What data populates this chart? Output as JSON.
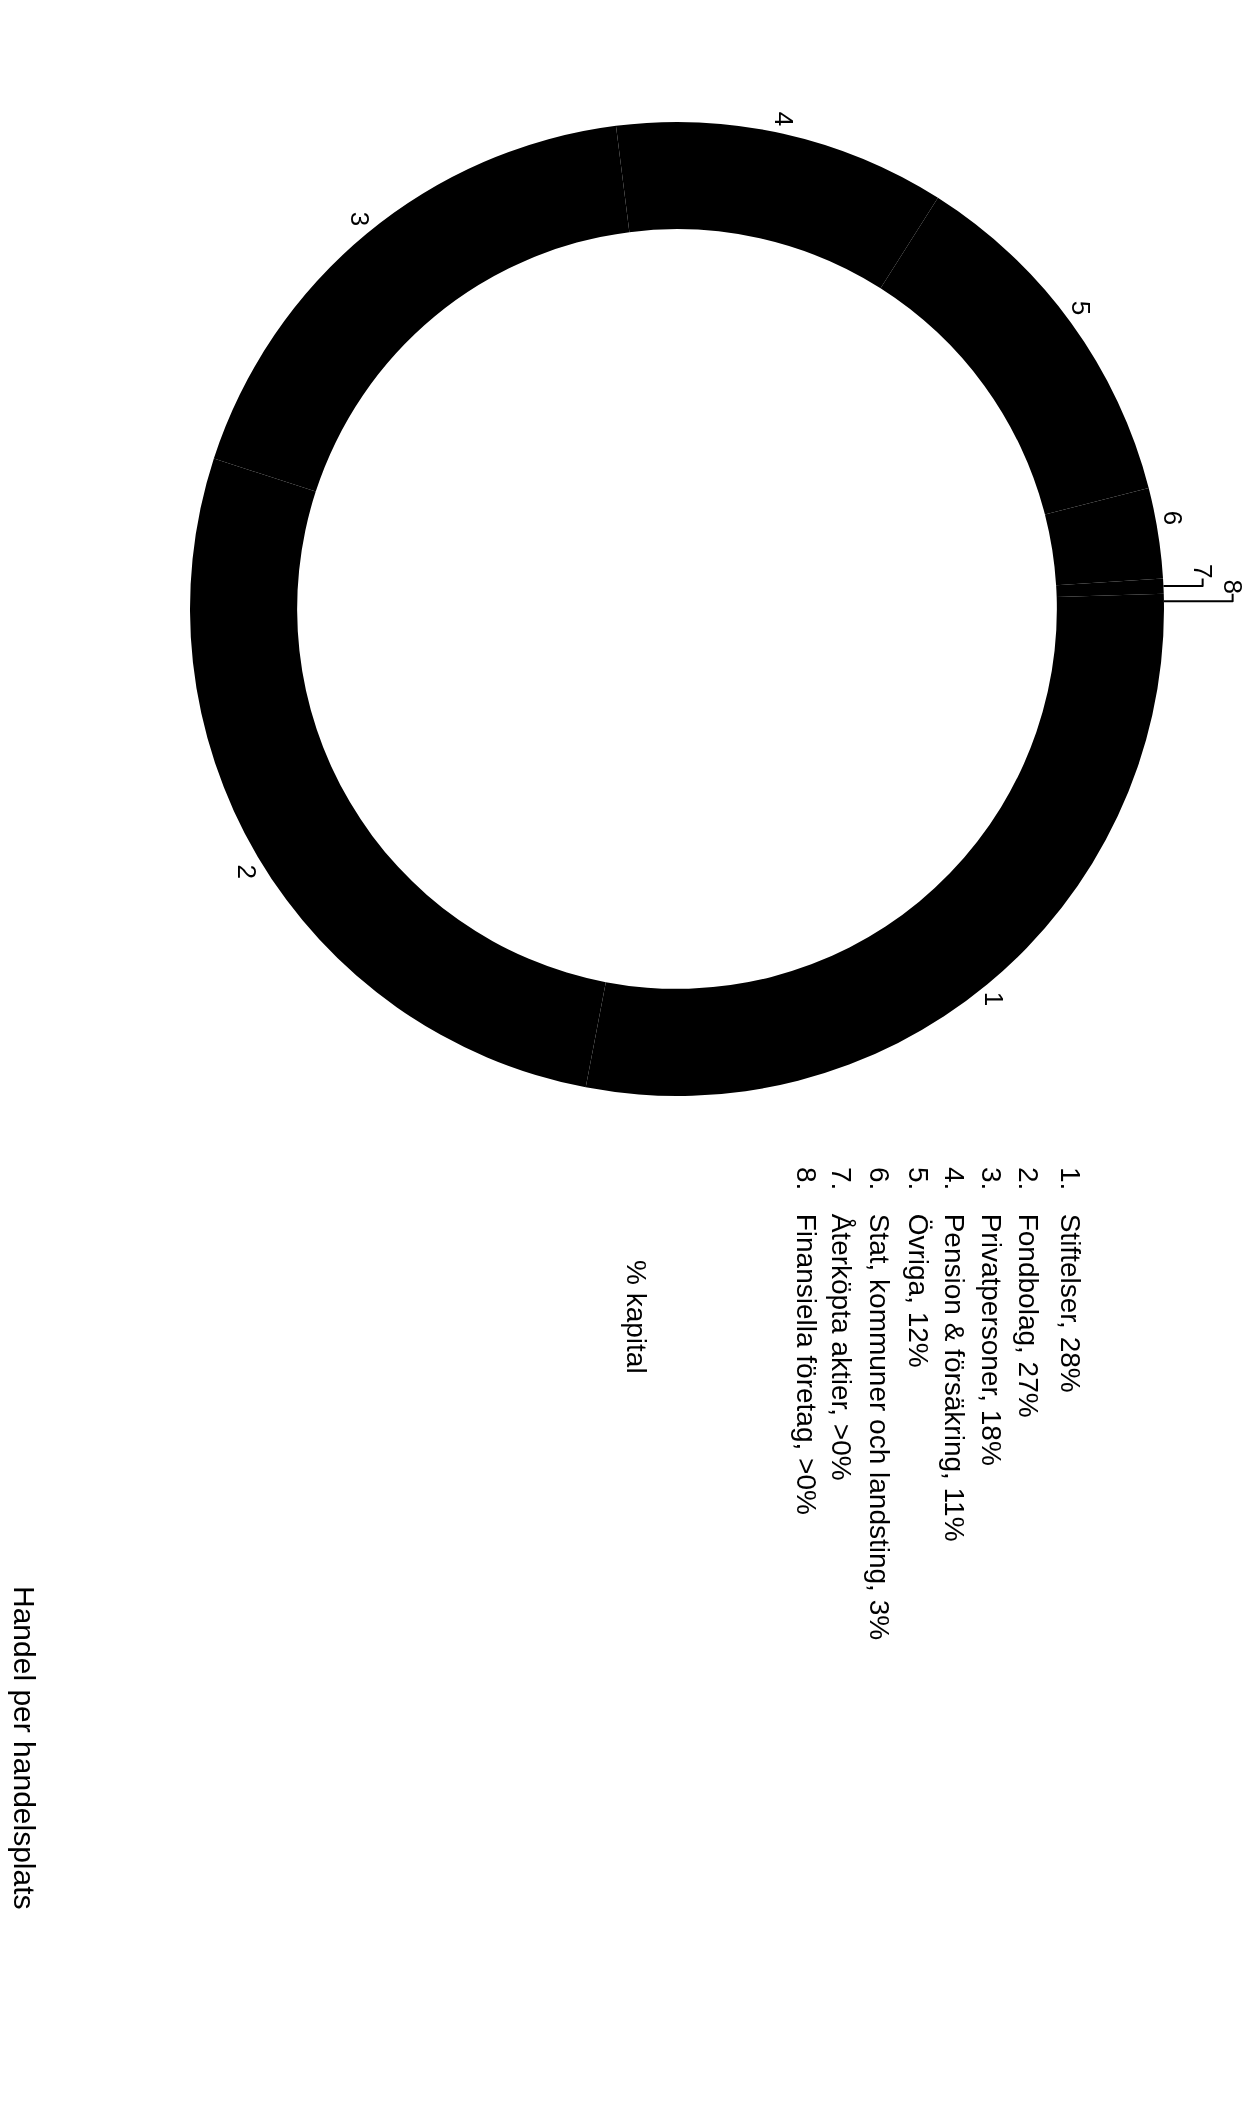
{
  "chart_data": {
    "type": "donut",
    "categories": [
      "1",
      "2",
      "3",
      "4",
      "5",
      "6",
      "7",
      "8"
    ],
    "values": [
      28,
      27,
      18,
      11,
      12,
      3,
      0.5,
      0.5
    ],
    "colors": [
      "#000000",
      "#000000",
      "#000000",
      "#000000",
      "#000000",
      "#000000",
      "#000000",
      "#000000"
    ],
    "annotations": [
      "1.  Stiftelser, 28%",
      "2.  Fondbolag, 27%",
      "3.  Privatpersoner, 18%",
      "4.  Pension & försäkring, 11%",
      "5.  Övriga, 12%",
      "6.  Stat, kommuner och landsting, 3%",
      "7.  Återköpta aktier, >0%",
      "8.  Finansiella företag, >0%",
      "% kapital",
      "Handel per handelsplats"
    ]
  }
}
